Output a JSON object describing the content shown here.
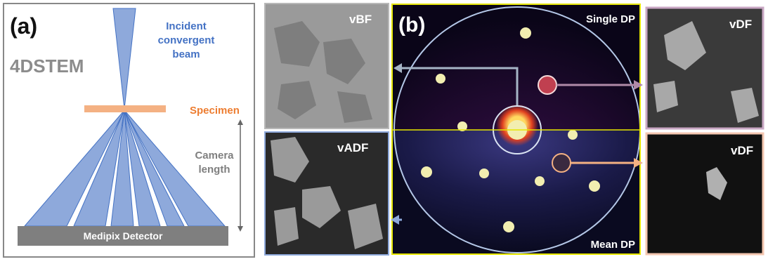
{
  "panel_a": {
    "label": "(a)",
    "title": "4DSTEM",
    "beam_label": [
      "Incident",
      "convergent",
      "beam"
    ],
    "specimen_label": "Specimen",
    "camera_length_label": [
      "Camera",
      "length"
    ],
    "detector_label": "Medipix Detector"
  },
  "panel_b": {
    "label": "(b)",
    "vbf_label": "vBF",
    "vadf_label": "vADF",
    "single_dp_label": "Single DP",
    "mean_dp_label": "Mean DP",
    "vdf_top_label": "vDF",
    "vdf_bottom_label": "vDF"
  }
}
